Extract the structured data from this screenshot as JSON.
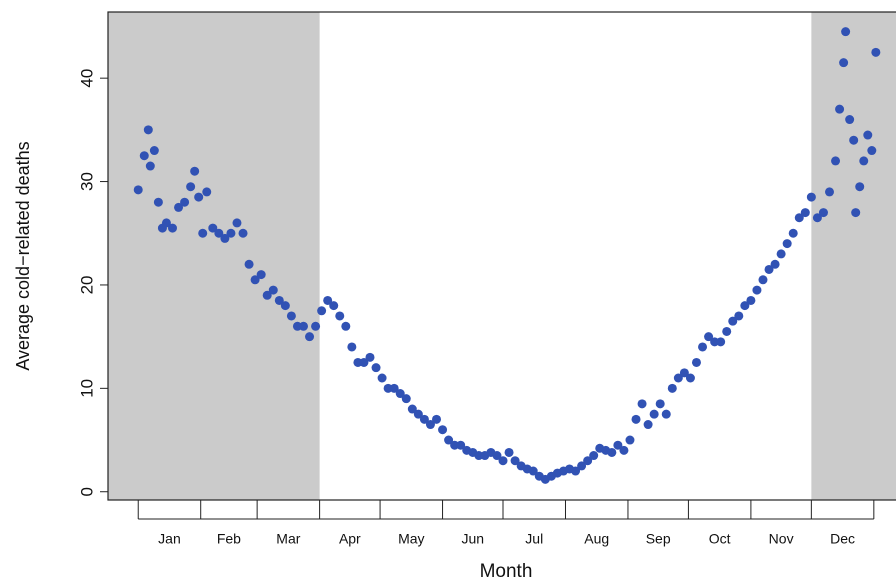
{
  "chart_data": {
    "type": "scatter",
    "xlabel": "Month",
    "ylabel": "Average cold−related deaths",
    "color": "#3152b4",
    "xlim": [
      -15,
      376
    ],
    "ylim": [
      -0.8,
      46.4
    ],
    "yticks": [
      0,
      10,
      20,
      30,
      40
    ],
    "xticks": [
      {
        "value": 15.5,
        "label": "Jan"
      },
      {
        "value": 45,
        "label": "Feb"
      },
      {
        "value": 74.5,
        "label": "Mar"
      },
      {
        "value": 105,
        "label": "Apr"
      },
      {
        "value": 135.5,
        "label": "May"
      },
      {
        "value": 166,
        "label": "Jun"
      },
      {
        "value": 196.5,
        "label": "Jul"
      },
      {
        "value": 227.5,
        "label": "Aug"
      },
      {
        "value": 258,
        "label": "Sep"
      },
      {
        "value": 288.5,
        "label": "Oct"
      },
      {
        "value": 319,
        "label": "Nov"
      },
      {
        "value": 349.5,
        "label": "Dec"
      }
    ],
    "xtick_marks": [
      0,
      31,
      59,
      90,
      120,
      151,
      181,
      212,
      243,
      273,
      304,
      334,
      365
    ],
    "shaded_regions": [
      [
        -15,
        90
      ],
      [
        334,
        376
      ]
    ],
    "shade_color": "#cbcbcb",
    "x": [
      0,
      3,
      5,
      6,
      8,
      10,
      12,
      14,
      17,
      20,
      23,
      26,
      28,
      30,
      32,
      34,
      37,
      40,
      43,
      46,
      49,
      52,
      55,
      58,
      61,
      64,
      67,
      70,
      73,
      76,
      79,
      82,
      85,
      88,
      91,
      94,
      97,
      100,
      103,
      106,
      109,
      112,
      115,
      118,
      121,
      124,
      127,
      130,
      133,
      136,
      139,
      142,
      145,
      148,
      151,
      154,
      157,
      160,
      163,
      166,
      169,
      172,
      175,
      178,
      181,
      184,
      187,
      190,
      193,
      196,
      199,
      202,
      205,
      208,
      211,
      214,
      217,
      220,
      223,
      226,
      229,
      232,
      235,
      238,
      241,
      244,
      247,
      250,
      253,
      256,
      259,
      262,
      265,
      268,
      271,
      274,
      277,
      280,
      283,
      286,
      289,
      292,
      295,
      298,
      301,
      304,
      307,
      310,
      313,
      316,
      319,
      322,
      325,
      328,
      331,
      334,
      337,
      340,
      343,
      346,
      348,
      350,
      351,
      353,
      355,
      356,
      358,
      360,
      362,
      364,
      366
    ],
    "values": [
      29.2,
      32.5,
      35,
      31.5,
      33,
      28,
      25.5,
      26,
      25.5,
      27.5,
      28,
      29.5,
      31,
      28.5,
      25,
      29,
      25.5,
      25,
      24.5,
      25,
      26,
      25,
      22,
      20.5,
      21,
      19,
      19.5,
      18.5,
      18,
      17,
      16,
      16,
      15,
      16,
      17.5,
      18.5,
      18,
      17,
      16,
      14,
      12.5,
      12.5,
      13,
      12,
      11,
      10,
      10,
      9.5,
      9,
      8,
      7.5,
      7,
      6.5,
      7,
      6,
      5,
      4.5,
      4.5,
      4,
      3.8,
      3.5,
      3.5,
      3.8,
      3.5,
      3,
      3.8,
      3,
      2.5,
      2.2,
      2,
      1.5,
      1.2,
      1.5,
      1.8,
      2,
      2.2,
      2,
      2.5,
      3,
      3.5,
      4.2,
      4,
      3.8,
      4.5,
      4,
      5,
      7,
      8.5,
      6.5,
      7.5,
      8.5,
      7.5,
      10,
      11,
      11.5,
      11,
      12.5,
      14,
      15,
      14.5,
      14.5,
      15.5,
      16.5,
      17,
      18,
      18.5,
      19.5,
      20.5,
      21.5,
      22,
      23,
      24,
      25,
      26.5,
      27,
      28.5,
      26.5,
      27,
      29,
      32,
      37,
      41.5,
      44.5,
      36,
      34,
      27,
      29.5,
      32,
      34.5,
      33,
      42.5
    ]
  }
}
